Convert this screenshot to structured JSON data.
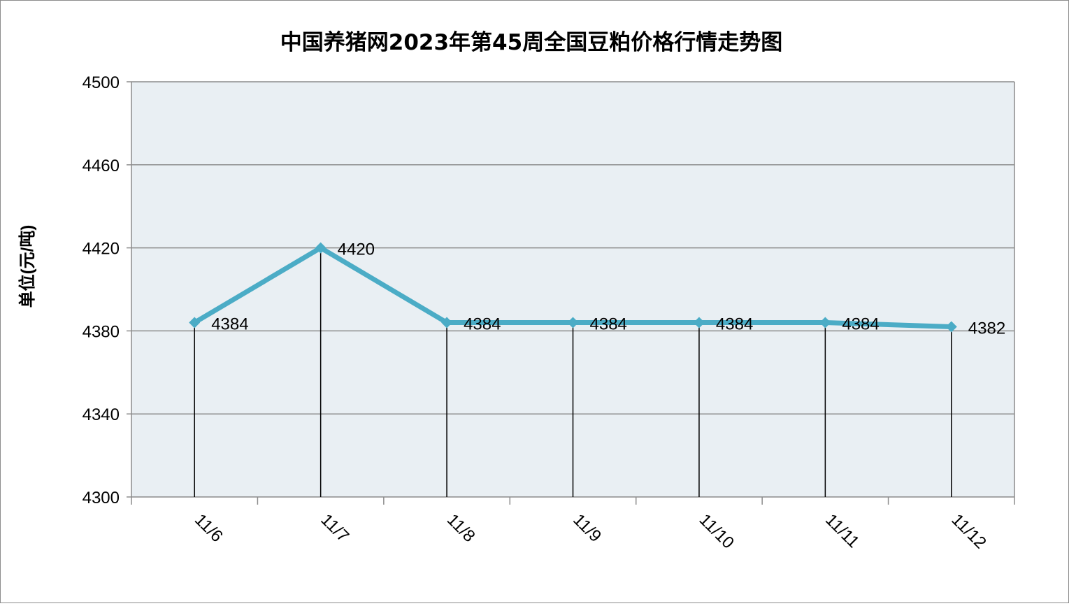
{
  "chart_data": {
    "type": "line",
    "title": "中国养猪网2023年第45周全国豆粕价格行情走势图",
    "ylabel": "单位(元/吨)",
    "xlabel": "",
    "categories": [
      "11/6",
      "11/7",
      "11/8",
      "11/9",
      "11/10",
      "11/11",
      "11/12"
    ],
    "values": [
      4384,
      4420,
      4384,
      4384,
      4384,
      4384,
      4382
    ],
    "data_labels": [
      "4384",
      "4420",
      "4384",
      "4384",
      "4384",
      "4384",
      "4382"
    ],
    "ylim": [
      4300,
      4500
    ],
    "yticks": [
      "4300",
      "4340",
      "4380",
      "4420",
      "4460",
      "4500"
    ],
    "grid": true,
    "drop_lines": true,
    "marker": "diamond",
    "legend": "none",
    "colors": {
      "line": "#4bacc6",
      "plot_background": "#e9eff3",
      "gridline": "#8c8c8c",
      "drop_line": "#000000",
      "text": "#000000"
    }
  }
}
